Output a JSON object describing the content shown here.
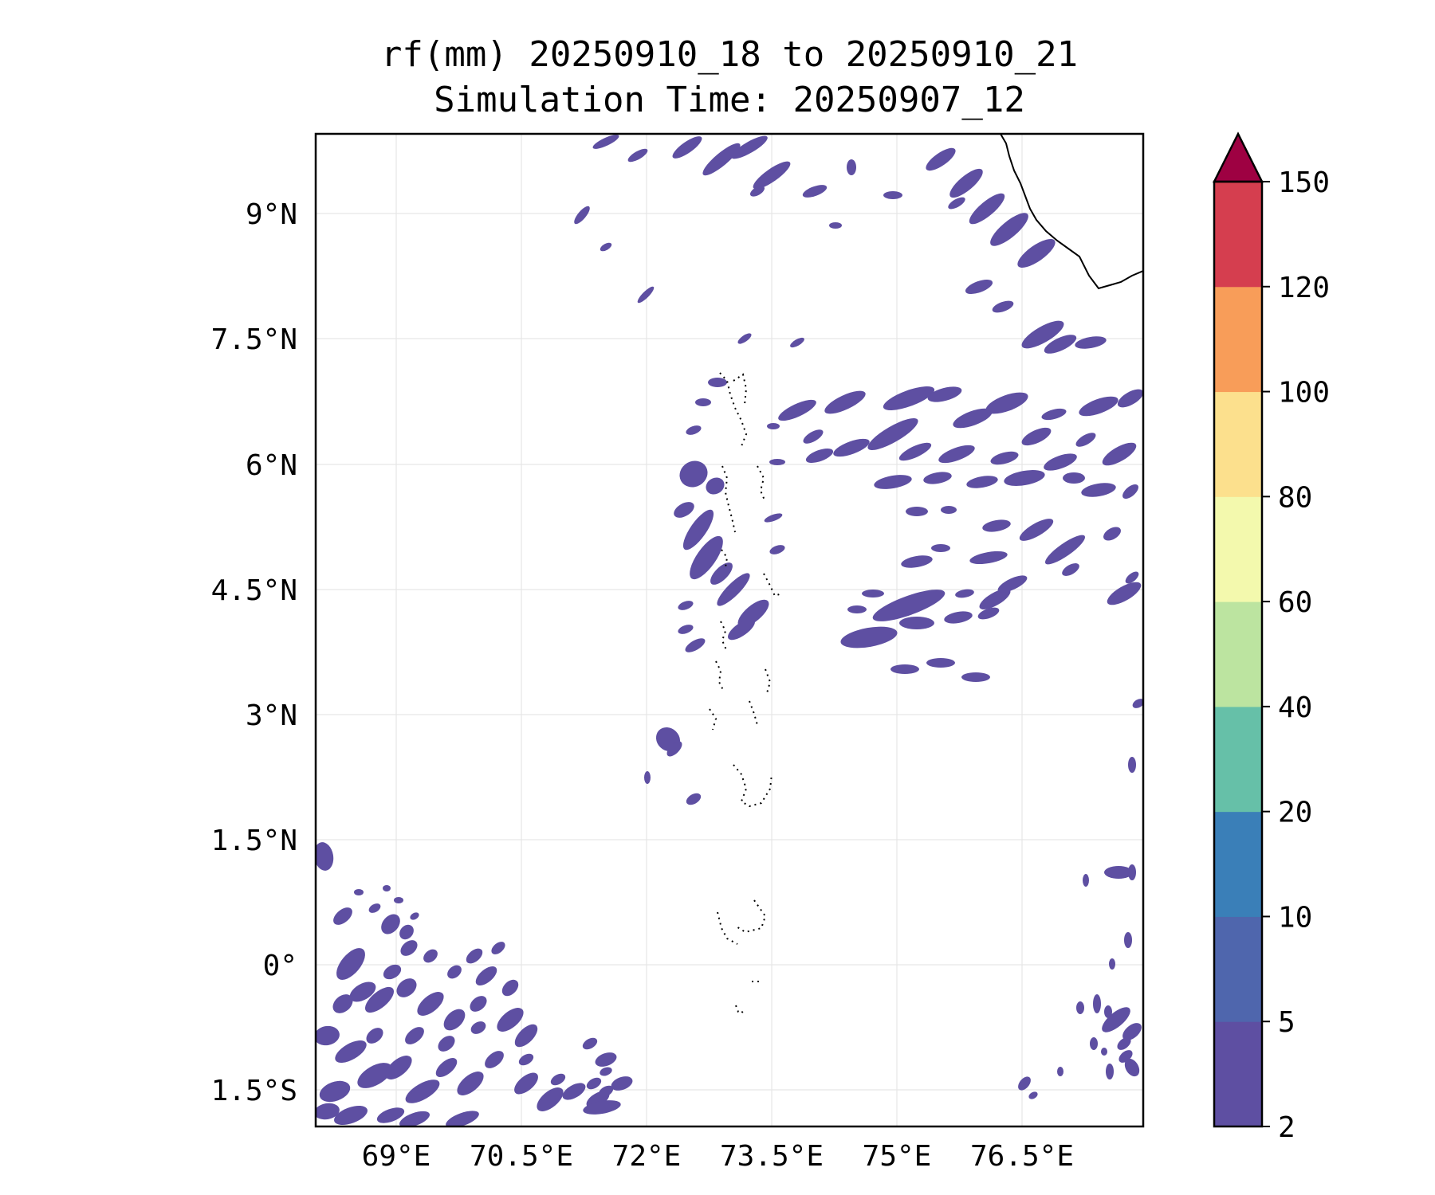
{
  "title": {
    "line1": "rf(mm) 20250910_18 to 20250910_21",
    "line2": "Simulation Time: 20250907_12"
  },
  "map": {
    "lon_ticks": [
      "69°E",
      "70.5°E",
      "72°E",
      "73.5°E",
      "75°E",
      "76.5°E"
    ],
    "lat_ticks": [
      "9°N",
      "7.5°N",
      "6°N",
      "4.5°N",
      "3°N",
      "1.5°N",
      "0°",
      "1.5°S"
    ],
    "grid": true,
    "coastline": "Indian coast (Kerala) in top-right; Maldives atoll outlines in centre",
    "rain_color": "#5e4fa2"
  },
  "colorbar": {
    "labels": [
      "2",
      "5",
      "10",
      "20",
      "40",
      "60",
      "80",
      "100",
      "120",
      "150"
    ],
    "colors": [
      "#5e4fa2",
      "#4f66ad",
      "#3a7fb8",
      "#66c0a8",
      "#bce4a0",
      "#f3f9ad",
      "#fce08d",
      "#f89d59",
      "#d53e4f"
    ],
    "extend_color": "#9e0142",
    "extend": "max"
  }
}
